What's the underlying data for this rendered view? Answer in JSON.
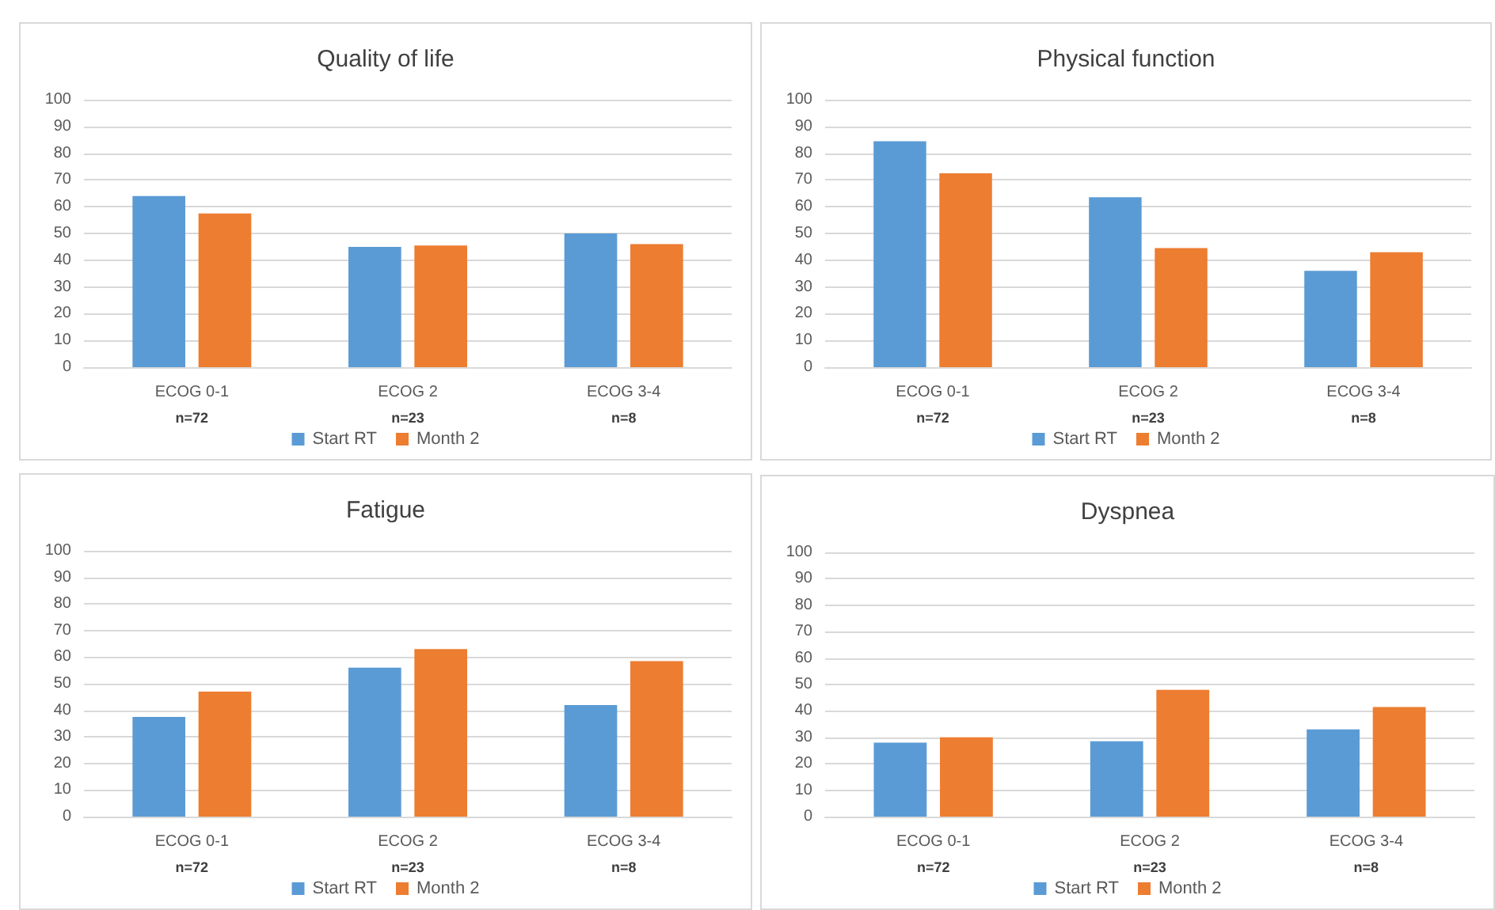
{
  "chart_data": [
    {
      "type": "bar",
      "title": "Quality of life",
      "categories": [
        "ECOG 0-1\nn=72",
        "ECOG 2\nn=23",
        "ECOG 3-4\nn=8"
      ],
      "series": [
        {
          "name": "Start RT",
          "color": "#5b9bd5",
          "values": [
            64,
            45,
            50
          ]
        },
        {
          "name": "Month 2",
          "color": "#ed7d31",
          "values": [
            57.5,
            45.5,
            46
          ]
        }
      ],
      "ylim": [
        0,
        100
      ],
      "yticks": [
        0,
        10,
        20,
        30,
        40,
        50,
        60,
        70,
        80,
        90,
        100
      ],
      "grid": "y",
      "legend": "bottom"
    },
    {
      "type": "bar",
      "title": "Physical function",
      "categories": [
        "ECOG 0-1\nn=72",
        "ECOG 2\nn=23",
        "ECOG 3-4\nn=8"
      ],
      "series": [
        {
          "name": "Start RT",
          "color": "#5b9bd5",
          "values": [
            84.5,
            63.5,
            36
          ]
        },
        {
          "name": "Month 2",
          "color": "#ed7d31",
          "values": [
            72.5,
            44.5,
            43
          ]
        }
      ],
      "ylim": [
        0,
        100
      ],
      "yticks": [
        0,
        10,
        20,
        30,
        40,
        50,
        60,
        70,
        80,
        90,
        100
      ],
      "grid": "y",
      "legend": "bottom"
    },
    {
      "type": "bar",
      "title": "Fatigue",
      "categories": [
        "ECOG 0-1\nn=72",
        "ECOG 2\nn=23",
        "ECOG 3-4\nn=8"
      ],
      "series": [
        {
          "name": "Start RT",
          "color": "#5b9bd5",
          "values": [
            37.5,
            56,
            42
          ]
        },
        {
          "name": "Month 2",
          "color": "#ed7d31",
          "values": [
            47,
            63,
            58.5
          ]
        }
      ],
      "ylim": [
        0,
        100
      ],
      "yticks": [
        0,
        10,
        20,
        30,
        40,
        50,
        60,
        70,
        80,
        90,
        100
      ],
      "grid": "y",
      "legend": "bottom"
    },
    {
      "type": "bar",
      "title": "Dyspnea",
      "categories": [
        "ECOG 0-1\nn=72",
        "ECOG 2\nn=23",
        "ECOG 3-4\nn=8"
      ],
      "series": [
        {
          "name": "Start RT",
          "color": "#5b9bd5",
          "values": [
            28,
            28.5,
            33
          ]
        },
        {
          "name": "Month 2",
          "color": "#ed7d31",
          "values": [
            30,
            48,
            41.5
          ]
        }
      ],
      "ylim": [
        0,
        100
      ],
      "yticks": [
        0,
        10,
        20,
        30,
        40,
        50,
        60,
        70,
        80,
        90,
        100
      ],
      "grid": "y",
      "legend": "bottom"
    }
  ]
}
